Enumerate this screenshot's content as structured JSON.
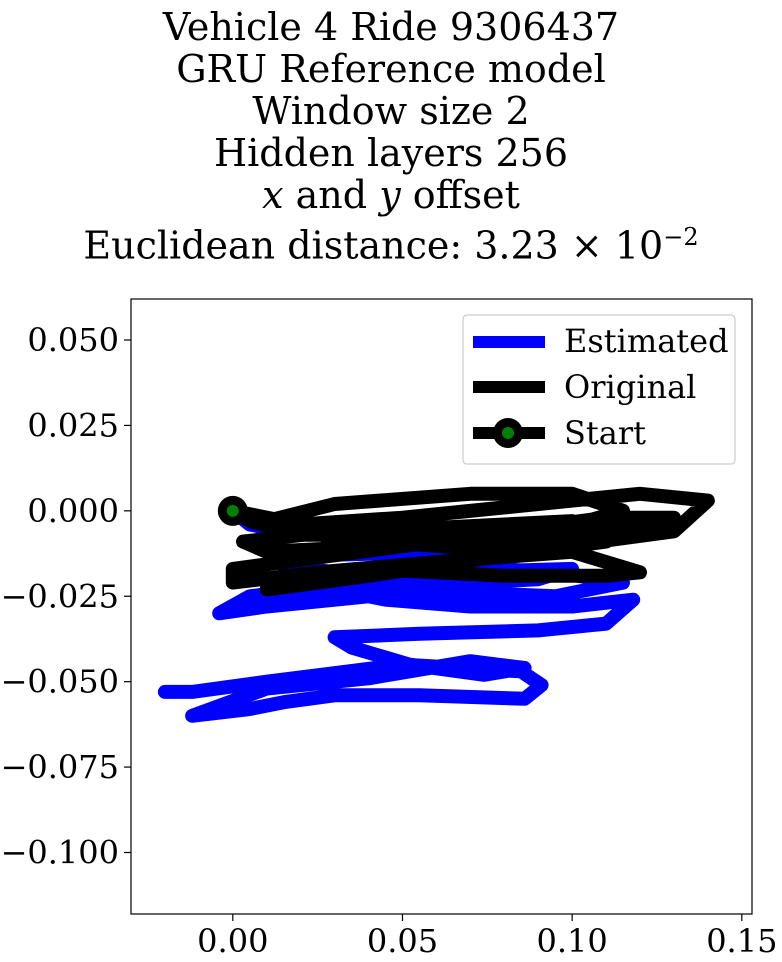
{
  "title_lines": {
    "l1": "Vehicle 4 Ride 9306437",
    "l2": "GRU Reference model",
    "l3": "Window size 2",
    "l4": "Hidden layers 256",
    "l5_x": "x",
    "l5_mid": " and ",
    "l5_y": "y",
    "l5_end": " offset",
    "l6_prefix": "Euclidean distance: 3.23 × 10",
    "l6_exp": "−2"
  },
  "colors": {
    "estimated": "#0000ff",
    "original": "#000000",
    "start_marker": "#008000"
  },
  "chart_data": {
    "type": "line",
    "title": "Vehicle 4 Ride 9306437 / GRU Reference model / Window size 2 / Hidden layers 256 / x and y offset / Euclidean distance: 3.23 × 10^−2",
    "xlabel": "",
    "ylabel": "",
    "xlim": [
      -0.03,
      0.153
    ],
    "ylim": [
      -0.118,
      0.062
    ],
    "xticks": [
      0.0,
      0.05,
      0.1,
      0.15
    ],
    "xtick_labels": [
      "0.00",
      "0.05",
      "0.10",
      "0.15"
    ],
    "yticks": [
      0.05,
      0.025,
      0.0,
      -0.025,
      -0.05,
      -0.075,
      -0.1
    ],
    "ytick_labels": [
      "0.050",
      "0.025",
      "0.000",
      "−0.025",
      "−0.050",
      "−0.075",
      "−0.100"
    ],
    "grid": false,
    "legend_position": "top-right",
    "series": [
      {
        "name": "Estimated",
        "color": "#0000ff",
        "x": [
          -0.02,
          -0.012,
          0.01,
          0.05,
          0.085,
          0.091,
          0.086,
          0.055,
          0.03,
          0.015,
          0.005,
          -0.012,
          0.01,
          0.04,
          0.07,
          0.086,
          0.074,
          0.052,
          0.035,
          0.03,
          0.055,
          0.09,
          0.11,
          0.118,
          0.1,
          0.07,
          0.045,
          0.035,
          0.05,
          0.09,
          0.1,
          0.065,
          0.03,
          0.005,
          -0.004,
          0.01,
          0.04,
          0.07,
          0.095,
          0.115,
          0.095,
          0.06,
          0.03,
          0.015,
          0.025,
          0.06,
          0.09,
          0.07,
          0.04,
          0.015,
          0.005,
          0.0
        ],
        "y": [
          -0.053,
          -0.053,
          -0.05,
          -0.045,
          -0.047,
          -0.051,
          -0.055,
          -0.054,
          -0.054,
          -0.056,
          -0.058,
          -0.06,
          -0.052,
          -0.049,
          -0.044,
          -0.046,
          -0.048,
          -0.045,
          -0.04,
          -0.037,
          -0.036,
          -0.035,
          -0.033,
          -0.026,
          -0.028,
          -0.028,
          -0.026,
          -0.024,
          -0.022,
          -0.02,
          -0.017,
          -0.018,
          -0.022,
          -0.025,
          -0.03,
          -0.028,
          -0.025,
          -0.024,
          -0.025,
          -0.021,
          -0.018,
          -0.016,
          -0.018,
          -0.016,
          -0.013,
          -0.012,
          -0.011,
          -0.008,
          -0.007,
          -0.006,
          -0.004,
          0.0
        ]
      },
      {
        "name": "Original",
        "color": "#000000",
        "x": [
          0.0,
          0.02,
          0.05,
          0.09,
          0.12,
          0.14,
          0.13,
          0.1,
          0.06,
          0.03,
          0.0,
          0.0,
          0.025,
          0.06,
          0.1,
          0.12,
          0.11,
          0.08,
          0.04,
          0.015,
          0.01,
          0.04,
          0.08,
          0.11,
          0.1,
          0.06,
          0.03,
          0.003,
          0.01,
          0.05,
          0.09,
          0.115,
          0.1,
          0.07,
          0.03,
          0.01,
          0.03,
          0.07,
          0.11,
          0.13,
          0.11,
          0.08,
          0.05,
          0.02,
          0.005,
          0.0
        ],
        "y": [
          0.0,
          -0.004,
          -0.002,
          0.002,
          0.005,
          0.003,
          -0.006,
          -0.01,
          -0.009,
          -0.013,
          -0.017,
          -0.021,
          -0.018,
          -0.015,
          -0.012,
          -0.018,
          -0.019,
          -0.019,
          -0.017,
          -0.02,
          -0.023,
          -0.019,
          -0.013,
          -0.009,
          -0.003,
          -0.005,
          -0.006,
          -0.009,
          -0.012,
          -0.01,
          -0.007,
          0.0,
          0.005,
          0.005,
          0.002,
          -0.003,
          -0.008,
          -0.011,
          -0.006,
          -0.002,
          -0.002,
          -0.006,
          -0.007,
          -0.007,
          -0.003,
          0.0
        ]
      },
      {
        "name": "Start",
        "x": [
          0.0
        ],
        "y": [
          0.0
        ]
      }
    ]
  }
}
